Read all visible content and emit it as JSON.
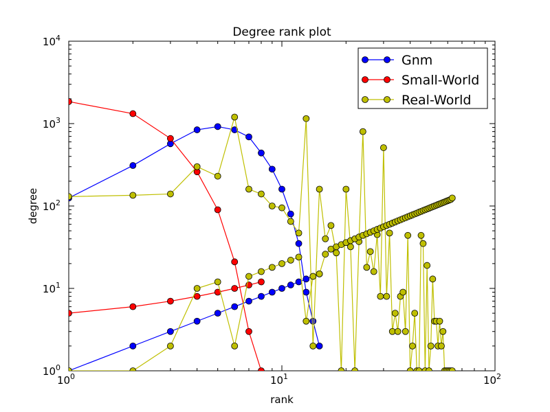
{
  "chart_data": {
    "type": "line",
    "title": "Degree rank plot",
    "xlabel": "rank",
    "ylabel": "degree",
    "xscale": "log",
    "yscale": "log",
    "xlim": [
      1,
      100
    ],
    "ylim": [
      1,
      10000
    ],
    "x_ticks": [
      {
        "base": "10",
        "exp": "0"
      },
      {
        "base": "10",
        "exp": "1"
      },
      {
        "base": "10",
        "exp": "2"
      }
    ],
    "y_ticks": [
      {
        "base": "10",
        "exp": "0"
      },
      {
        "base": "10",
        "exp": "1"
      },
      {
        "base": "10",
        "exp": "2"
      },
      {
        "base": "10",
        "exp": "3"
      },
      {
        "base": "10",
        "exp": "4"
      }
    ],
    "legend_position": "top-right",
    "grid": false,
    "series": [
      {
        "name": "Gnm",
        "color": "#0000ff",
        "values": [
          125,
          310,
          570,
          840,
          920,
          840,
          690,
          440,
          280,
          160,
          80,
          35,
          9,
          4,
          2
        ],
        "y_cap_start": 2,
        "values_tail": [
          1,
          2,
          3,
          4,
          5,
          6,
          7,
          8,
          9,
          10,
          11,
          12,
          13,
          14,
          15
        ]
      },
      {
        "name": "Small-World",
        "color": "#ff0000",
        "values": [
          1850,
          1320,
          660,
          260,
          90,
          21,
          3,
          1
        ],
        "values_tail": [
          5,
          6,
          7,
          8,
          9,
          10,
          11,
          12
        ]
      },
      {
        "name": "Real-World",
        "color": "#bfbf00",
        "values": [
          130,
          135,
          140,
          300,
          230,
          1200,
          160,
          140,
          100,
          95,
          65,
          47,
          1150,
          2,
          160,
          40,
          58,
          27,
          1,
          160,
          32,
          1,
          37,
          800,
          18,
          28,
          16,
          45,
          8,
          510,
          8,
          47,
          3,
          5,
          3,
          8,
          9,
          3,
          44,
          1,
          2,
          5,
          1,
          1,
          44,
          35,
          1,
          19,
          1,
          2,
          13,
          4,
          4,
          2,
          4,
          2,
          3,
          1,
          1,
          1,
          1,
          1,
          1
        ],
        "values_tail": [
          1,
          1,
          2,
          10,
          12,
          2,
          14,
          16,
          18,
          20,
          22,
          24,
          4,
          14,
          15,
          26,
          30,
          32,
          34,
          36,
          38,
          40,
          42,
          44,
          46,
          48,
          50,
          52,
          54,
          56,
          58,
          60,
          62,
          64,
          66,
          68,
          70,
          72,
          74,
          76,
          78,
          80,
          82,
          84,
          86,
          88,
          90,
          92,
          94,
          96,
          98,
          100,
          102,
          104,
          106,
          108,
          110,
          112,
          114,
          116,
          118,
          120,
          125
        ]
      }
    ]
  }
}
